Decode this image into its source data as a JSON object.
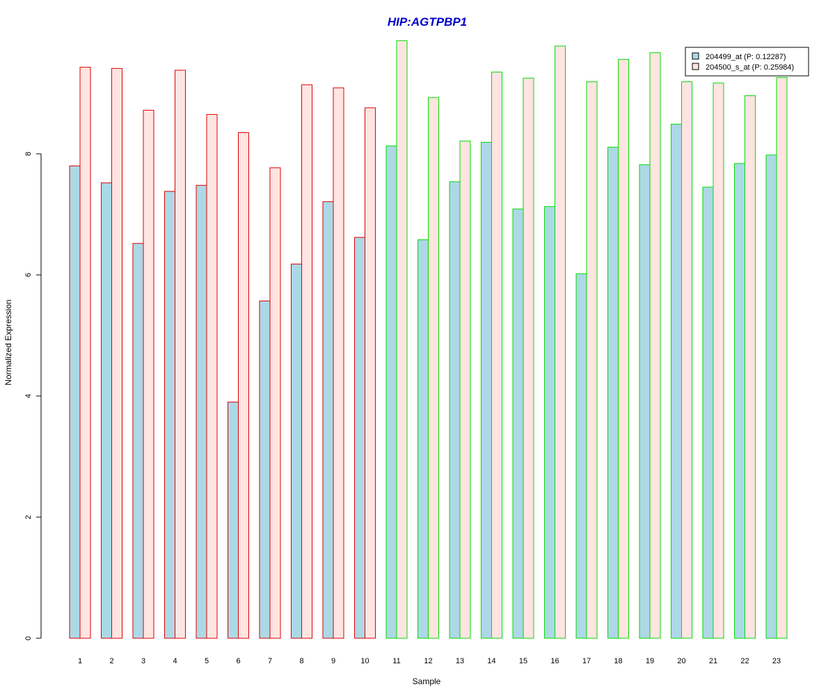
{
  "chart_data": {
    "type": "bar",
    "title": "HIP:AGTPBP1",
    "xlabel": "Sample",
    "ylabel": "Normalized Expression",
    "ylim": [
      0,
      10
    ],
    "yticks": [
      0,
      2,
      4,
      6,
      8
    ],
    "categories": [
      "1",
      "2",
      "3",
      "4",
      "5",
      "6",
      "7",
      "8",
      "9",
      "10",
      "11",
      "12",
      "13",
      "14",
      "15",
      "16",
      "17",
      "18",
      "19",
      "20",
      "21",
      "22",
      "23"
    ],
    "group_border_colors": [
      "#dd0000",
      "#dd0000",
      "#dd0000",
      "#dd0000",
      "#dd0000",
      "#dd0000",
      "#dd0000",
      "#dd0000",
      "#dd0000",
      "#dd0000",
      "#00dd00",
      "#00dd00",
      "#00dd00",
      "#00dd00",
      "#00dd00",
      "#00dd00",
      "#00dd00",
      "#00dd00",
      "#00dd00",
      "#00dd00",
      "#00dd00",
      "#00dd00",
      "#00dd00"
    ],
    "series": [
      {
        "name": "204499_at (P: 0.12287)",
        "fill": "#add8e6",
        "values": [
          7.8,
          7.52,
          6.52,
          7.38,
          7.48,
          3.9,
          5.57,
          6.18,
          7.21,
          6.62,
          8.13,
          6.58,
          7.54,
          8.19,
          7.09,
          7.13,
          6.02,
          8.11,
          7.82,
          8.49,
          7.45,
          7.84,
          7.98
        ]
      },
      {
        "name": "204500_s_at (P: 0.25984)",
        "fill": "#ffe4e1",
        "values": [
          9.43,
          9.41,
          8.72,
          9.38,
          8.65,
          8.35,
          7.77,
          9.14,
          9.09,
          8.76,
          9.87,
          8.93,
          8.21,
          9.35,
          9.25,
          9.78,
          9.19,
          9.56,
          9.67,
          9.19,
          9.17,
          8.96,
          9.26
        ]
      }
    ],
    "legend_position": "top-right"
  }
}
